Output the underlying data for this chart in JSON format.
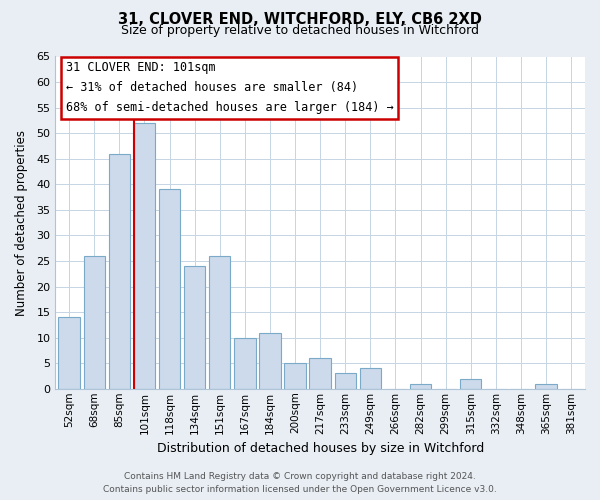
{
  "title": "31, CLOVER END, WITCHFORD, ELY, CB6 2XD",
  "subtitle": "Size of property relative to detached houses in Witchford",
  "xlabel": "Distribution of detached houses by size in Witchford",
  "ylabel": "Number of detached properties",
  "bar_labels": [
    "52sqm",
    "68sqm",
    "85sqm",
    "101sqm",
    "118sqm",
    "134sqm",
    "151sqm",
    "167sqm",
    "184sqm",
    "200sqm",
    "217sqm",
    "233sqm",
    "249sqm",
    "266sqm",
    "282sqm",
    "299sqm",
    "315sqm",
    "332sqm",
    "348sqm",
    "365sqm",
    "381sqm"
  ],
  "bar_values": [
    14,
    26,
    46,
    52,
    39,
    24,
    26,
    10,
    11,
    5,
    6,
    3,
    4,
    0,
    1,
    0,
    2,
    0,
    0,
    1,
    0
  ],
  "bar_color": "#ccdaeb",
  "bar_edge_color": "#7aaac8",
  "highlight_index": 3,
  "highlight_line_color": "#cc0000",
  "ylim": [
    0,
    65
  ],
  "yticks": [
    0,
    5,
    10,
    15,
    20,
    25,
    30,
    35,
    40,
    45,
    50,
    55,
    60,
    65
  ],
  "annotation_title": "31 CLOVER END: 101sqm",
  "annotation_line1": "← 31% of detached houses are smaller (84)",
  "annotation_line2": "68% of semi-detached houses are larger (184) →",
  "annotation_box_color": "#ffffff",
  "annotation_box_edge": "#cc0000",
  "footer_line1": "Contains HM Land Registry data © Crown copyright and database right 2024.",
  "footer_line2": "Contains public sector information licensed under the Open Government Licence v3.0.",
  "bg_color": "#e8eef4",
  "plot_bg_color": "#ffffff"
}
